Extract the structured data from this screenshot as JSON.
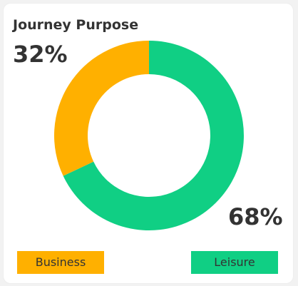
{
  "title": "Journey Purpose",
  "chart_data": {
    "type": "pie",
    "categories": [
      "Business",
      "Leisure"
    ],
    "values": [
      32,
      68
    ],
    "value_labels": [
      "32%",
      "68%"
    ],
    "colors": [
      "#FFB000",
      "#10CF84"
    ],
    "donut": true,
    "legend_position": "bottom"
  }
}
